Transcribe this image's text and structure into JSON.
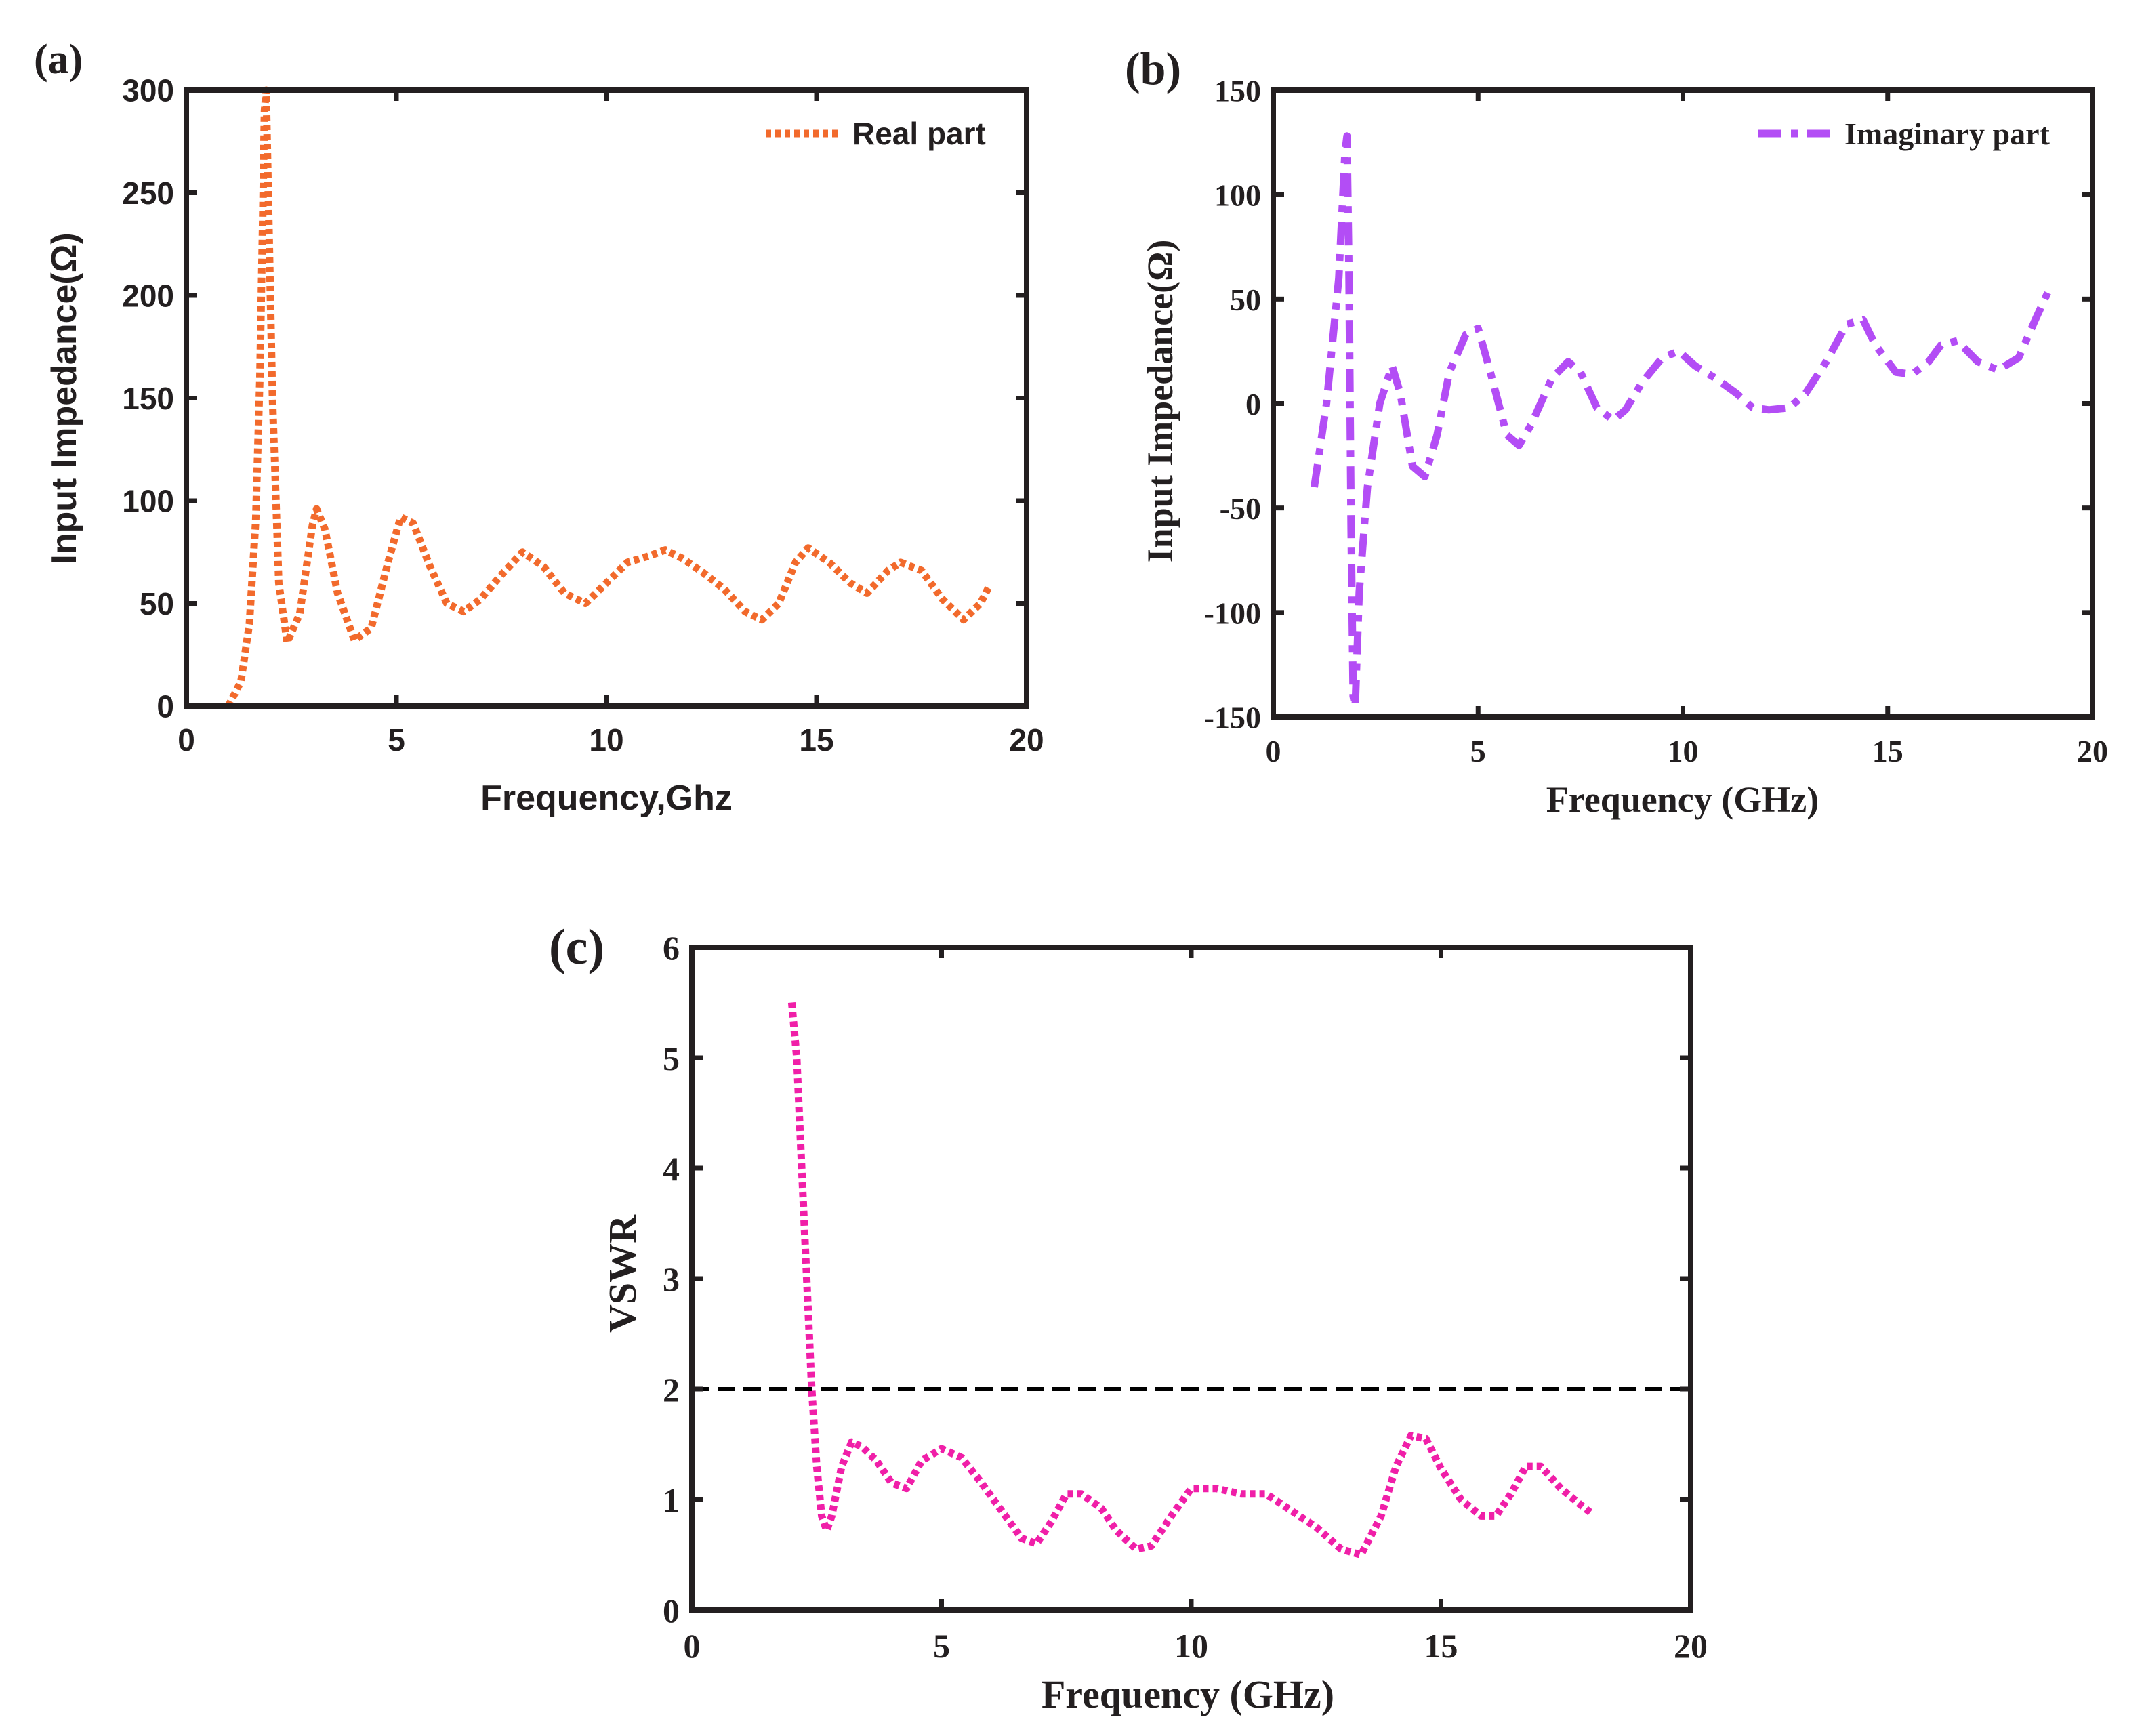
{
  "colors": {
    "axis": "#231f20",
    "real": "#f26a2c",
    "imag": "#b34df5",
    "vswr": "#f01fa8",
    "reference": "#000000",
    "background": "#ffffff"
  },
  "chart_data": [
    {
      "type": "line",
      "panel_label": "(a)",
      "title": "",
      "xlabel": "Frequency,Ghz",
      "ylabel": "Input Impedance(Ω)",
      "xlim": [
        0,
        20
      ],
      "ylim": [
        0,
        300
      ],
      "xticks": [
        0,
        5,
        10,
        15,
        20
      ],
      "xtick_labels": [
        "0",
        "5",
        "10",
        "15",
        "20"
      ],
      "yticks": [
        0,
        50,
        100,
        150,
        200,
        250,
        300
      ],
      "ytick_labels": [
        "0",
        "50",
        "100",
        "150",
        "200",
        "250",
        "300"
      ],
      "grid": false,
      "legend_position": "top-right",
      "series": [
        {
          "name": "Real part",
          "style": "dotted",
          "color_key": "real",
          "x": [
            1.0,
            1.3,
            1.5,
            1.65,
            1.75,
            1.82,
            1.86,
            1.9,
            1.95,
            2.05,
            2.2,
            2.4,
            2.7,
            3.0,
            3.1,
            3.3,
            3.6,
            4.0,
            4.4,
            4.8,
            5.1,
            5.4,
            5.8,
            6.2,
            6.6,
            7.0,
            7.5,
            8.0,
            8.5,
            9.0,
            9.5,
            10.0,
            10.5,
            11.0,
            11.4,
            11.8,
            12.3,
            12.8,
            13.3,
            13.7,
            14.1,
            14.5,
            14.8,
            15.3,
            15.8,
            16.2,
            16.7,
            17.0,
            17.5,
            18.0,
            18.5,
            18.9,
            19.1
          ],
          "y": [
            0,
            12,
            40,
            90,
            160,
            240,
            290,
            300,
            250,
            150,
            60,
            31,
            45,
            88,
            96,
            86,
            55,
            32,
            38,
            70,
            92,
            89,
            68,
            50,
            46,
            52,
            64,
            75,
            68,
            55,
            50,
            60,
            70,
            73,
            76,
            72,
            65,
            57,
            46,
            42,
            50,
            70,
            77,
            70,
            60,
            55,
            66,
            70,
            66,
            52,
            42,
            50,
            58
          ]
        }
      ]
    },
    {
      "type": "line",
      "panel_label": "(b)",
      "title": "",
      "xlabel": "Frequency (GHz)",
      "ylabel": "Input Impedance(Ω)",
      "xlim": [
        0,
        20
      ],
      "ylim": [
        -150,
        150
      ],
      "xticks": [
        0,
        5,
        10,
        15,
        20
      ],
      "xtick_labels": [
        "0",
        "5",
        "10",
        "15",
        "20"
      ],
      "yticks": [
        -150,
        -100,
        -50,
        0,
        50,
        100,
        150
      ],
      "ytick_labels": [
        "-150",
        "-100",
        "-50",
        "0",
        "50",
        "100",
        "150"
      ],
      "grid": false,
      "legend_position": "top-right",
      "series": [
        {
          "name": "Imaginary part",
          "style": "dash-dot",
          "color_key": "imag",
          "x": [
            1.0,
            1.3,
            1.6,
            1.75,
            1.8,
            1.85,
            1.9,
            1.95,
            2.0,
            2.1,
            2.3,
            2.6,
            2.9,
            3.1,
            3.4,
            3.7,
            4.0,
            4.3,
            4.7,
            5.0,
            5.3,
            5.7,
            6.0,
            6.3,
            6.8,
            7.2,
            7.5,
            7.9,
            8.3,
            8.6,
            9.0,
            9.5,
            9.9,
            10.3,
            10.8,
            11.3,
            11.7,
            12.1,
            12.6,
            13.0,
            13.5,
            14.0,
            14.4,
            14.7,
            15.2,
            15.6,
            16.0,
            16.3,
            16.7,
            17.2,
            17.7,
            18.2,
            18.6,
            19.0
          ],
          "y": [
            -40,
            0,
            60,
            120,
            128,
            60,
            -60,
            -140,
            -145,
            -90,
            -40,
            0,
            18,
            5,
            -30,
            -35,
            -15,
            15,
            33,
            36,
            15,
            -15,
            -20,
            -10,
            12,
            20,
            15,
            -2,
            -8,
            -3,
            10,
            22,
            25,
            18,
            12,
            5,
            -2,
            -3,
            -2,
            5,
            20,
            38,
            40,
            28,
            15,
            14,
            20,
            28,
            30,
            20,
            16,
            22,
            40,
            57
          ]
        }
      ]
    },
    {
      "type": "line",
      "panel_label": "(c)",
      "title": "",
      "xlabel": "Frequency (GHz)",
      "ylabel": "VSWR",
      "xlim": [
        0,
        20
      ],
      "ylim": [
        0,
        6
      ],
      "xticks": [
        0,
        5,
        10,
        15,
        20
      ],
      "xtick_labels": [
        "0",
        "5",
        "10",
        "15",
        "20"
      ],
      "yticks": [
        0,
        1,
        2,
        3,
        4,
        5,
        6
      ],
      "ytick_labels": [
        "0",
        "1",
        "2",
        "3",
        "4",
        "5",
        "6"
      ],
      "grid": false,
      "reference_line": {
        "y": 2,
        "style": "dashed",
        "color_key": "reference"
      },
      "series": [
        {
          "name": "VSWR",
          "style": "dotted",
          "color_key": "vswr",
          "x": [
            2.0,
            2.1,
            2.2,
            2.3,
            2.4,
            2.5,
            2.6,
            2.7,
            2.8,
            3.0,
            3.2,
            3.4,
            3.7,
            4.0,
            4.3,
            4.6,
            5.0,
            5.4,
            5.8,
            6.2,
            6.6,
            6.9,
            7.2,
            7.5,
            7.8,
            8.2,
            8.5,
            8.9,
            9.2,
            9.6,
            10.0,
            10.5,
            11.0,
            11.5,
            12.0,
            12.5,
            13.0,
            13.4,
            13.8,
            14.1,
            14.4,
            14.7,
            15.0,
            15.4,
            15.8,
            16.1,
            16.4,
            16.7,
            17.0,
            17.4,
            17.8,
            18.0
          ],
          "y": [
            5.5,
            5.0,
            4.0,
            3.0,
            2.0,
            1.3,
            0.85,
            0.72,
            0.85,
            1.3,
            1.52,
            1.48,
            1.35,
            1.15,
            1.1,
            1.35,
            1.46,
            1.38,
            1.15,
            0.9,
            0.65,
            0.6,
            0.8,
            1.05,
            1.05,
            0.92,
            0.72,
            0.55,
            0.58,
            0.85,
            1.1,
            1.1,
            1.05,
            1.05,
            0.9,
            0.75,
            0.55,
            0.5,
            0.85,
            1.3,
            1.58,
            1.55,
            1.28,
            1.0,
            0.85,
            0.85,
            1.05,
            1.3,
            1.3,
            1.1,
            0.95,
            0.88
          ]
        }
      ]
    }
  ]
}
